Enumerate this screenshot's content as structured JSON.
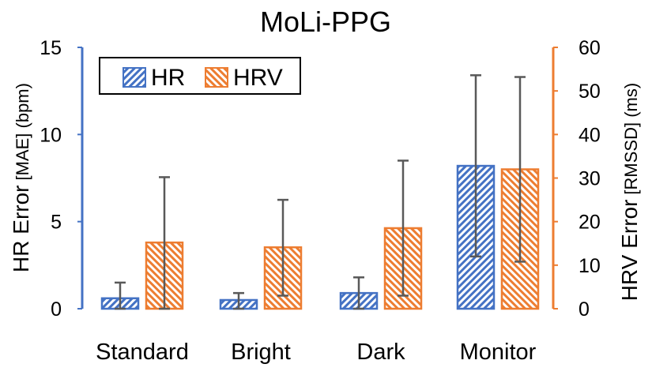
{
  "chart_data": {
    "type": "bar",
    "title": "MoLi-PPG",
    "categories": [
      "Standard",
      "Bright",
      "Dark",
      "Monitor"
    ],
    "series": [
      {
        "name": "HR",
        "axis": "left",
        "color": "#4472C4",
        "values": [
          0.6,
          0.5,
          0.9,
          8.2
        ],
        "error_low": [
          0.0,
          0.0,
          0.0,
          3.0
        ],
        "error_high": [
          1.5,
          0.9,
          1.8,
          13.4
        ]
      },
      {
        "name": "HRV",
        "axis": "right",
        "color": "#ED7D31",
        "values": [
          15.2,
          14.1,
          18.5,
          32.0
        ],
        "error_low": [
          0.0,
          3.0,
          3.0,
          10.8
        ],
        "error_high": [
          30.2,
          25.0,
          34.0,
          53.2
        ]
      }
    ],
    "y_left": {
      "label_main": "HR Error",
      "label_small": "[MAE] (bpm)",
      "lim": [
        0,
        15
      ],
      "ticks": [
        "0",
        "5",
        "10",
        "15"
      ],
      "color": "#4472C4"
    },
    "y_right": {
      "label_main": "HRV Error",
      "label_small": "[RMSSD] (ms)",
      "lim": [
        0,
        60
      ],
      "ticks": [
        "0",
        "10",
        "20",
        "30",
        "40",
        "50",
        "60"
      ],
      "color": "#ED7D31"
    },
    "grid": false,
    "legend_position": "top-left",
    "error_bar_color": "#595959"
  }
}
